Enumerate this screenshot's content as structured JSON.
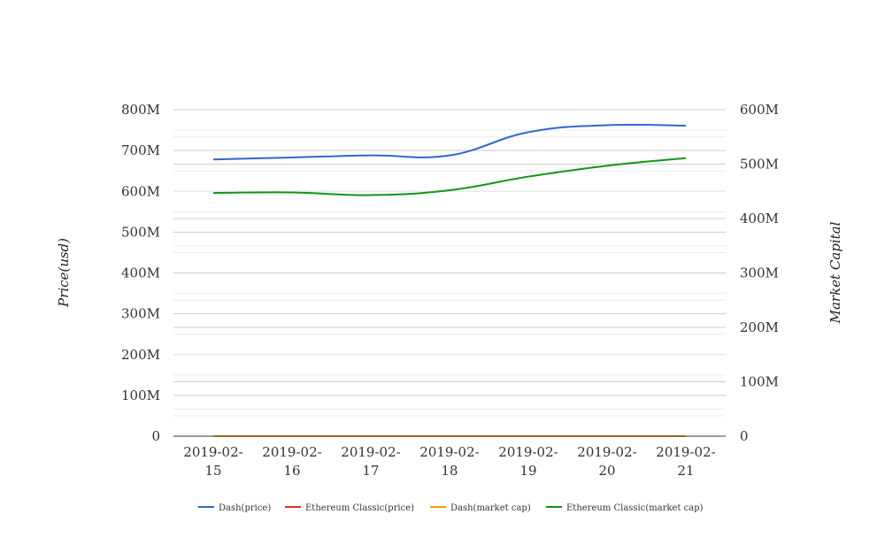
{
  "chart_data": {
    "type": "line",
    "categories": [
      [
        "2019-02-",
        "15"
      ],
      [
        "2019-02-",
        "16"
      ],
      [
        "2019-02-",
        "17"
      ],
      [
        "2019-02-",
        "18"
      ],
      [
        "2019-02-",
        "19"
      ],
      [
        "2019-02-",
        "20"
      ],
      [
        "2019-02-",
        "21"
      ]
    ],
    "y_left": {
      "label": "Price(usd)",
      "range": [
        0,
        800000000
      ],
      "ticks": [
        0,
        100000000,
        200000000,
        300000000,
        400000000,
        500000000,
        600000000,
        700000000,
        800000000
      ],
      "tick_labels": [
        "0",
        "100M",
        "200M",
        "300M",
        "400M",
        "500M",
        "600M",
        "700M",
        "800M"
      ]
    },
    "y_right": {
      "label": "Market Capital",
      "range": [
        0,
        600000000
      ],
      "ticks": [
        0,
        100000000,
        200000000,
        300000000,
        400000000,
        500000000,
        600000000
      ],
      "tick_labels": [
        "0",
        "100M",
        "200M",
        "300M",
        "400M",
        "500M",
        "600M"
      ]
    },
    "grid": true,
    "legend_position": "bottom",
    "series": [
      {
        "name": "Dash(price)",
        "axis": "left",
        "color": "#3366cc",
        "values": [
          678000000,
          683000000,
          688000000,
          688000000,
          745000000,
          762000000,
          761000000
        ]
      },
      {
        "name": "Ethereum Classic(price)",
        "axis": "left",
        "color": "#dc3912",
        "values": [
          4,
          4,
          4,
          4,
          4,
          4,
          4
        ]
      },
      {
        "name": "Dash(market cap)",
        "axis": "right",
        "color": "#ff9900",
        "values": [
          0,
          0,
          0,
          0,
          0,
          0,
          0
        ]
      },
      {
        "name": "Ethereum Classic(market cap)",
        "axis": "right",
        "color": "#109618",
        "values": [
          447000000,
          448000000,
          443000000,
          452000000,
          477000000,
          497000000,
          511000000
        ]
      }
    ]
  }
}
